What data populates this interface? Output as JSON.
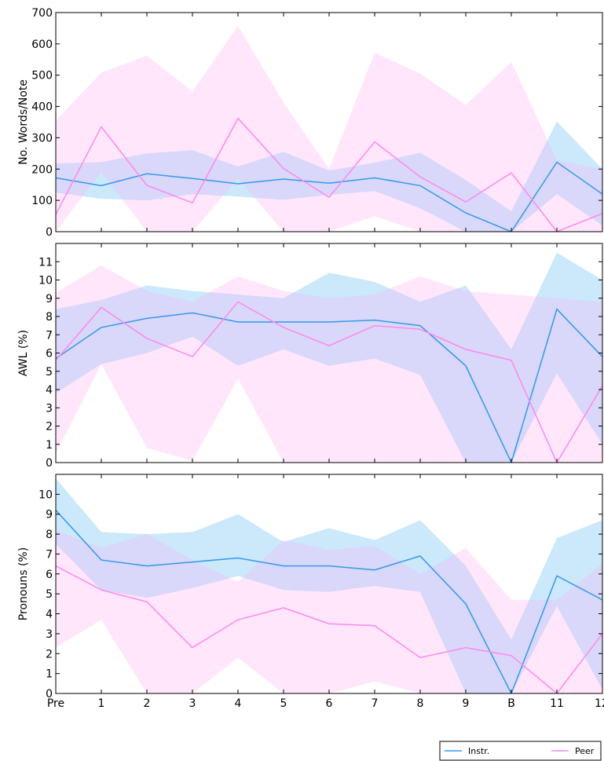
{
  "chart_data": {
    "type": "line",
    "x": [
      "Pre",
      "1",
      "2",
      "3",
      "4",
      "5",
      "6",
      "7",
      "8",
      "9",
      "B",
      "11",
      "12"
    ],
    "legend": {
      "placement": "bottom-right",
      "entries": [
        "Instr.",
        "Peer"
      ]
    },
    "colors": {
      "instr_line": "#3399ee",
      "instr_band": "#cce8fb",
      "peer_line": "#ff88ee",
      "peer_band": "#ffe6fb",
      "overlap_band": "#d9d7fa"
    },
    "grid": false,
    "panels": [
      {
        "ylabel": "No. Words/Note",
        "ylim": [
          0,
          700
        ],
        "yticks": [
          0,
          100,
          200,
          300,
          400,
          500,
          600,
          700
        ],
        "series": [
          {
            "name": "Instr.",
            "mean": [
              172,
              147,
              185,
              170,
              153,
              168,
              155,
              172,
              147,
              60,
              0,
              222,
              120
            ],
            "upper": [
              218,
              222,
              250,
              260,
              208,
              255,
              195,
              220,
              252,
              165,
              65,
              352,
              200
            ],
            "lower": [
              125,
              105,
              100,
              120,
              112,
              102,
              118,
              130,
              75,
              0,
              0,
              120,
              20
            ]
          },
          {
            "name": "Peer",
            "mean": [
              55,
              335,
              148,
              92,
              362,
              202,
              110,
              287,
              175,
              95,
              188,
              0,
              58
            ],
            "upper": [
              355,
              508,
              562,
              448,
              658,
              412,
              200,
              572,
              505,
              405,
              542,
              228,
              200
            ],
            "lower": [
              0,
              190,
              0,
              0,
              170,
              0,
              0,
              50,
              0,
              0,
              0,
              0,
              0
            ]
          }
        ]
      },
      {
        "ylabel": "AWL (%)",
        "ylim": [
          0,
          12
        ],
        "yticks": [
          0,
          1,
          2,
          3,
          4,
          5,
          6,
          7,
          8,
          9,
          10,
          11
        ],
        "series": [
          {
            "name": "Instr.",
            "mean": [
              5.7,
              7.4,
              7.9,
              8.2,
              7.7,
              7.7,
              7.7,
              7.8,
              7.5,
              5.3,
              0,
              8.4,
              5.8
            ],
            "upper": [
              8.4,
              8.9,
              9.7,
              9.4,
              9.2,
              9.0,
              10.4,
              9.9,
              8.8,
              9.7,
              6.2,
              11.5,
              10.0
            ],
            "lower": [
              3.8,
              5.4,
              6.0,
              6.9,
              5.3,
              6.2,
              5.3,
              5.7,
              4.8,
              0,
              0,
              4.9,
              1.0
            ]
          },
          {
            "name": "Peer",
            "mean": [
              5.6,
              8.5,
              6.8,
              5.8,
              8.8,
              7.4,
              6.4,
              7.5,
              7.3,
              6.2,
              5.6,
              0,
              4.2
            ],
            "upper": [
              9.3,
              10.8,
              9.4,
              8.8,
              10.2,
              9.4,
              9.0,
              9.2,
              10.2,
              9.4,
              9.2,
              9.0,
              8.8
            ],
            "lower": [
              0.5,
              5.4,
              0.8,
              0.1,
              4.6,
              0,
              0,
              0,
              0,
              0,
              0,
              0,
              0
            ]
          }
        ]
      },
      {
        "ylabel": "Pronouns (%)",
        "ylim": [
          0,
          11
        ],
        "yticks": [
          0,
          1,
          2,
          3,
          4,
          5,
          6,
          7,
          8,
          9,
          10
        ],
        "series": [
          {
            "name": "Instr.",
            "mean": [
              9.2,
              6.7,
              6.4,
              6.6,
              6.8,
              6.4,
              6.4,
              6.2,
              6.9,
              4.5,
              0,
              5.9,
              4.7
            ],
            "upper": [
              10.8,
              8.1,
              8.0,
              8.1,
              9.0,
              7.6,
              8.3,
              7.7,
              8.7,
              6.4,
              2.7,
              7.8,
              8.7
            ],
            "lower": [
              7.5,
              5.2,
              4.8,
              5.3,
              5.9,
              5.2,
              5.1,
              5.4,
              5.1,
              0,
              0,
              4.4,
              0.2
            ]
          },
          {
            "name": "Peer",
            "mean": [
              6.4,
              5.2,
              4.6,
              2.3,
              3.7,
              4.3,
              3.5,
              3.4,
              1.8,
              2.3,
              1.9,
              0,
              3.0
            ],
            "upper": [
              8.2,
              7.3,
              8.0,
              6.7,
              5.6,
              7.7,
              7.2,
              7.4,
              6.0,
              7.3,
              4.7,
              4.7,
              6.5
            ],
            "lower": [
              2.3,
              3.7,
              0,
              0,
              1.8,
              0,
              0,
              0.6,
              0,
              0,
              0,
              0,
              0
            ]
          }
        ]
      }
    ]
  }
}
